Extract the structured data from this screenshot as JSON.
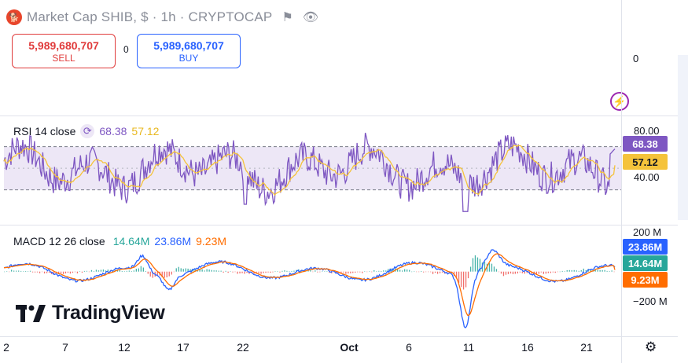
{
  "header": {
    "title": "Market Cap SHIB, $ · 1h · CRYPTOCAP",
    "logo_text": "SHIB"
  },
  "trade": {
    "sell_value": "5,989,680,707",
    "sell_label": "SELL",
    "spread": "0",
    "buy_value": "5,989,680,707",
    "buy_label": "BUY"
  },
  "main_pane": {
    "axis_label": "0"
  },
  "rsi": {
    "name": "RSI 14 close",
    "value": "68.38",
    "ma_value": "57.12",
    "axis_labels": [
      "80.00",
      "40.00"
    ],
    "badge_value": "68.38",
    "badge_ma": "57.12",
    "colors": {
      "rsi": "#7e57c2",
      "ma": "#f5c33b",
      "band": "#ede7f6"
    }
  },
  "macd": {
    "name": "MACD 12 26 close",
    "hist_value": "14.64M",
    "macd_value": "23.86M",
    "signal_value": "9.23M",
    "axis_labels": [
      "200 M",
      "−200 M"
    ],
    "badge_macd": "23.86M",
    "badge_hist": "14.64M",
    "badge_signal": "9.23M",
    "colors": {
      "macd": "#2962ff",
      "signal": "#ff6d00",
      "hist_pos": "#26a69a",
      "hist_neg": "#ef5350"
    }
  },
  "watermark": "TradingView",
  "x_axis": {
    "ticks": [
      {
        "label": "2"
      },
      {
        "label": "7"
      },
      {
        "label": "12"
      },
      {
        "label": "17"
      },
      {
        "label": "22"
      },
      {
        "label": "Oct"
      },
      {
        "label": "6"
      },
      {
        "label": "11"
      },
      {
        "label": "16"
      },
      {
        "label": "21"
      }
    ]
  },
  "chart_data": {
    "type": "line",
    "panes": [
      {
        "name": "RSI 14 close",
        "ylim": [
          18,
          90
        ],
        "bands": [
          40,
          70
        ],
        "series": [
          {
            "name": "RSI",
            "last": 68.38
          },
          {
            "name": "MA",
            "last": 57.12
          }
        ]
      },
      {
        "name": "MACD 12 26 close",
        "ylim": [
          -340,
          240
        ],
        "series": [
          {
            "name": "MACD",
            "last": 23.86
          },
          {
            "name": "Signal",
            "last": 9.23
          },
          {
            "name": "Histogram",
            "last": 14.64
          }
        ]
      }
    ]
  }
}
